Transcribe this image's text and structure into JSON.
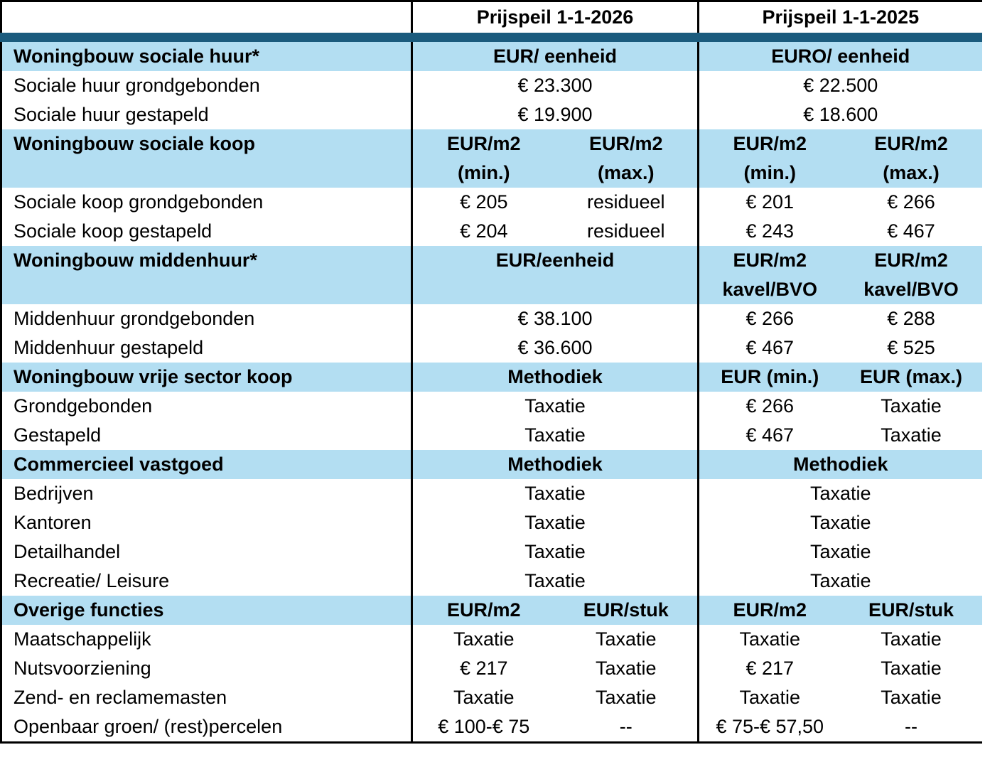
{
  "colors": {
    "section_bg": "#B3DEF2",
    "divider_band": "#1B5B7D",
    "border": "#000000"
  },
  "table": {
    "header": {
      "label": "",
      "y2026": "Prijspeil 1-1-2026",
      "y2025": "Prijspeil 1-1-2025"
    },
    "rows": [
      {
        "type": "section",
        "tall": false,
        "label": "Woningbouw sociale huur*",
        "cells": [
          {
            "span": 2,
            "lines": [
              "EUR/ eenheid"
            ]
          },
          {
            "span": 2,
            "lines": [
              "EURO/ eenheid"
            ]
          }
        ]
      },
      {
        "type": "data",
        "label": "Sociale huur grondgebonden",
        "cells": [
          {
            "span": 2,
            "lines": [
              "€ 23.300"
            ]
          },
          {
            "span": 2,
            "lines": [
              "€ 22.500"
            ]
          }
        ]
      },
      {
        "type": "data",
        "label": "Sociale huur gestapeld",
        "cells": [
          {
            "span": 2,
            "lines": [
              "€ 19.900"
            ]
          },
          {
            "span": 2,
            "lines": [
              "€ 18.600"
            ]
          }
        ]
      },
      {
        "type": "section",
        "tall": true,
        "label": "Woningbouw sociale koop",
        "cells": [
          {
            "span": 1,
            "lines": [
              "EUR/m2",
              "(min.)"
            ]
          },
          {
            "span": 1,
            "lines": [
              "EUR/m2",
              "(max.)"
            ]
          },
          {
            "span": 1,
            "lines": [
              "EUR/m2",
              "(min.)"
            ]
          },
          {
            "span": 1,
            "lines": [
              "EUR/m2",
              "(max.)"
            ]
          }
        ]
      },
      {
        "type": "data",
        "label": "Sociale koop grondgebonden",
        "cells": [
          {
            "span": 1,
            "lines": [
              "€ 205"
            ]
          },
          {
            "span": 1,
            "lines": [
              "residueel"
            ]
          },
          {
            "span": 1,
            "lines": [
              "€ 201"
            ]
          },
          {
            "span": 1,
            "lines": [
              "€ 266"
            ]
          }
        ]
      },
      {
        "type": "data",
        "label": "Sociale koop gestapeld",
        "cells": [
          {
            "span": 1,
            "lines": [
              "€ 204"
            ]
          },
          {
            "span": 1,
            "lines": [
              "residueel"
            ]
          },
          {
            "span": 1,
            "lines": [
              "€ 243"
            ]
          },
          {
            "span": 1,
            "lines": [
              "€ 467"
            ]
          }
        ]
      },
      {
        "type": "section",
        "tall": true,
        "label": "Woningbouw middenhuur*",
        "cells": [
          {
            "span": 2,
            "lines": [
              "EUR/eenheid"
            ]
          },
          {
            "span": 1,
            "lines": [
              "EUR/m2",
              "kavel/BVO"
            ]
          },
          {
            "span": 1,
            "lines": [
              "EUR/m2",
              "kavel/BVO"
            ]
          }
        ]
      },
      {
        "type": "data",
        "label": "Middenhuur grondgebonden",
        "cells": [
          {
            "span": 2,
            "lines": [
              "€ 38.100"
            ]
          },
          {
            "span": 1,
            "lines": [
              "€ 266"
            ]
          },
          {
            "span": 1,
            "lines": [
              "€ 288"
            ]
          }
        ]
      },
      {
        "type": "data",
        "label": "Middenhuur gestapeld",
        "cells": [
          {
            "span": 2,
            "lines": [
              "€ 36.600"
            ]
          },
          {
            "span": 1,
            "lines": [
              "€ 467"
            ]
          },
          {
            "span": 1,
            "lines": [
              "€ 525"
            ]
          }
        ]
      },
      {
        "type": "section",
        "tall": false,
        "label": "Woningbouw vrije sector koop",
        "cells": [
          {
            "span": 2,
            "lines": [
              "Methodiek"
            ]
          },
          {
            "span": 1,
            "lines": [
              "EUR (min.)"
            ]
          },
          {
            "span": 1,
            "lines": [
              "EUR (max.)"
            ]
          }
        ]
      },
      {
        "type": "data",
        "label": "Grondgebonden",
        "cells": [
          {
            "span": 2,
            "lines": [
              "Taxatie"
            ]
          },
          {
            "span": 1,
            "lines": [
              "€ 266"
            ]
          },
          {
            "span": 1,
            "lines": [
              "Taxatie"
            ]
          }
        ]
      },
      {
        "type": "data",
        "label": "Gestapeld",
        "cells": [
          {
            "span": 2,
            "lines": [
              "Taxatie"
            ]
          },
          {
            "span": 1,
            "lines": [
              "€ 467"
            ]
          },
          {
            "span": 1,
            "lines": [
              "Taxatie"
            ]
          }
        ]
      },
      {
        "type": "section",
        "tall": false,
        "label": "Commercieel vastgoed",
        "cells": [
          {
            "span": 2,
            "lines": [
              "Methodiek"
            ]
          },
          {
            "span": 2,
            "lines": [
              "Methodiek"
            ]
          }
        ]
      },
      {
        "type": "data",
        "label": "Bedrijven",
        "cells": [
          {
            "span": 2,
            "lines": [
              "Taxatie"
            ]
          },
          {
            "span": 2,
            "lines": [
              "Taxatie"
            ]
          }
        ]
      },
      {
        "type": "data",
        "label": "Kantoren",
        "cells": [
          {
            "span": 2,
            "lines": [
              "Taxatie"
            ]
          },
          {
            "span": 2,
            "lines": [
              "Taxatie"
            ]
          }
        ]
      },
      {
        "type": "data",
        "label": "Detailhandel",
        "cells": [
          {
            "span": 2,
            "lines": [
              "Taxatie"
            ]
          },
          {
            "span": 2,
            "lines": [
              "Taxatie"
            ]
          }
        ]
      },
      {
        "type": "data",
        "label": "Recreatie/ Leisure",
        "cells": [
          {
            "span": 2,
            "lines": [
              "Taxatie"
            ]
          },
          {
            "span": 2,
            "lines": [
              "Taxatie"
            ]
          }
        ]
      },
      {
        "type": "section",
        "tall": false,
        "label": "Overige functies",
        "cells": [
          {
            "span": 1,
            "lines": [
              "EUR/m2"
            ]
          },
          {
            "span": 1,
            "lines": [
              "EUR/stuk"
            ]
          },
          {
            "span": 1,
            "lines": [
              "EUR/m2"
            ]
          },
          {
            "span": 1,
            "lines": [
              "EUR/stuk"
            ]
          }
        ]
      },
      {
        "type": "data",
        "label": "Maatschappelijk",
        "cells": [
          {
            "span": 1,
            "lines": [
              "Taxatie"
            ]
          },
          {
            "span": 1,
            "lines": [
              "Taxatie"
            ]
          },
          {
            "span": 1,
            "lines": [
              "Taxatie"
            ]
          },
          {
            "span": 1,
            "lines": [
              "Taxatie"
            ]
          }
        ]
      },
      {
        "type": "data",
        "label": "Nutsvoorziening",
        "cells": [
          {
            "span": 1,
            "lines": [
              "€ 217"
            ]
          },
          {
            "span": 1,
            "lines": [
              "Taxatie"
            ]
          },
          {
            "span": 1,
            "lines": [
              "€ 217"
            ]
          },
          {
            "span": 1,
            "lines": [
              "Taxatie"
            ]
          }
        ]
      },
      {
        "type": "data",
        "label": "Zend- en reclamemasten",
        "cells": [
          {
            "span": 1,
            "lines": [
              "Taxatie"
            ]
          },
          {
            "span": 1,
            "lines": [
              "Taxatie"
            ]
          },
          {
            "span": 1,
            "lines": [
              "Taxatie"
            ]
          },
          {
            "span": 1,
            "lines": [
              "Taxatie"
            ]
          }
        ]
      },
      {
        "type": "data",
        "label": "Openbaar groen/ (rest)percelen",
        "cells": [
          {
            "span": 1,
            "lines": [
              "€ 100-€ 75"
            ]
          },
          {
            "span": 1,
            "lines": [
              "--"
            ]
          },
          {
            "span": 1,
            "lines": [
              "€ 75-€ 57,50"
            ]
          },
          {
            "span": 1,
            "lines": [
              "--"
            ]
          }
        ]
      }
    ]
  }
}
